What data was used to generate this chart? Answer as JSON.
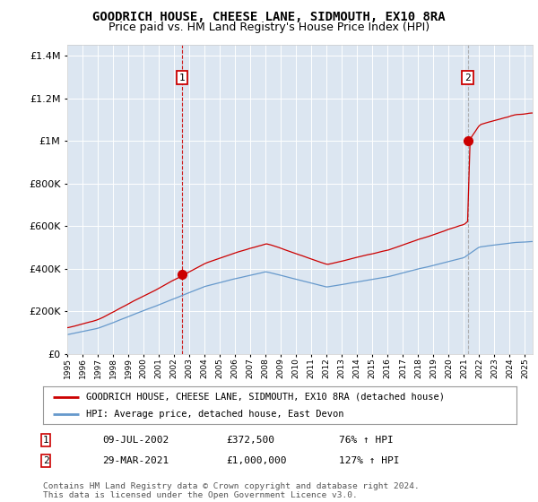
{
  "title": "GOODRICH HOUSE, CHEESE LANE, SIDMOUTH, EX10 8RA",
  "subtitle": "Price paid vs. HM Land Registry's House Price Index (HPI)",
  "legend_line1": "GOODRICH HOUSE, CHEESE LANE, SIDMOUTH, EX10 8RA (detached house)",
  "legend_line2": "HPI: Average price, detached house, East Devon",
  "annotation1_label": "1",
  "annotation1_date": "09-JUL-2002",
  "annotation1_price": "£372,500",
  "annotation1_hpi": "76% ↑ HPI",
  "annotation2_label": "2",
  "annotation2_date": "29-MAR-2021",
  "annotation2_price": "£1,000,000",
  "annotation2_hpi": "127% ↑ HPI",
  "footer": "Contains HM Land Registry data © Crown copyright and database right 2024.\nThis data is licensed under the Open Government Licence v3.0.",
  "plot_bg_color": "#dce6f1",
  "hpi_line_color": "#6699cc",
  "price_line_color": "#cc0000",
  "vline1_color": "#cc0000",
  "vline2_color": "#aaaaaa",
  "marker1_x": 2002.54,
  "marker1_y": 372500,
  "marker2_x": 2021.24,
  "marker2_y": 1000000,
  "vline1_x": 2002.54,
  "vline2_x": 2021.24,
  "ylim": [
    0,
    1450000
  ],
  "xlim_start": 1995,
  "xlim_end": 2025.5,
  "title_fontsize": 10,
  "subtitle_fontsize": 9
}
